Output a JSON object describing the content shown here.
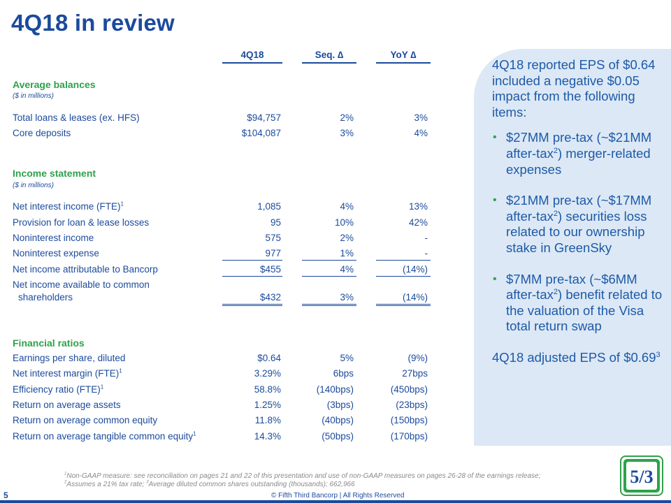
{
  "title": "4Q18 in review",
  "columns": [
    "4Q18",
    "Seq. ∆",
    "YoY ∆"
  ],
  "sections": {
    "avg_balances": {
      "heading": "Average balances",
      "unit": "($ in millions)"
    },
    "income": {
      "heading": "Income statement",
      "unit": "($ in millions)"
    },
    "ratios": {
      "heading": "Financial ratios"
    }
  },
  "rows": {
    "loans": {
      "label": "Total loans & leases (ex. HFS)",
      "v1": "$94,757",
      "v2": "2%",
      "v3": "3%"
    },
    "deposits": {
      "label": "Core deposits",
      "v1": "$104,087",
      "v2": "3%",
      "v3": "4%"
    },
    "nii": {
      "label": "Net interest income (FTE)",
      "sup": "1",
      "v1": "1,085",
      "v2": "4%",
      "v3": "13%"
    },
    "provision": {
      "label": "Provision for loan & lease losses",
      "v1": "95",
      "v2": "10%",
      "v3": "42%"
    },
    "nonint_income": {
      "label": "Noninterest income",
      "v1": "575",
      "v2": "2%",
      "v3": "-"
    },
    "nonint_expense": {
      "label": "Noninterest expense",
      "v1": "977",
      "v2": "1%",
      "v3": "-"
    },
    "net_income": {
      "label": "Net income attributable to Bancorp",
      "v1": "$455",
      "v2": "4%",
      "v3": "(14%)"
    },
    "net_common": {
      "label_l1": "Net income available to common",
      "label_l2": "shareholders",
      "v1": "$432",
      "v2": "3%",
      "v3": "(14%)"
    },
    "eps": {
      "label": "Earnings per share, diluted",
      "v1": "$0.64",
      "v2": "5%",
      "v3": "(9%)"
    },
    "nim": {
      "label": "Net interest margin (FTE)",
      "sup": "1",
      "v1": "3.29%",
      "v2": "6bps",
      "v3": "27bps"
    },
    "efficiency": {
      "label": "Efficiency ratio (FTE)",
      "sup": "1",
      "v1": "58.8%",
      "v2": "(140bps)",
      "v3": "(450bps)"
    },
    "roa": {
      "label": "Return on average assets",
      "v1": "1.25%",
      "v2": "(3bps)",
      "v3": "(23bps)"
    },
    "roe": {
      "label": "Return on average common equity",
      "v1": "11.8%",
      "v2": "(40bps)",
      "v3": "(150bps)"
    },
    "rotce": {
      "label": "Return on average tangible common equity",
      "sup": "1",
      "v1": "14.3%",
      "v2": "(50bps)",
      "v3": "(170bps)"
    }
  },
  "panel": {
    "intro": "4Q18 reported EPS of $0.64 included a negative $0.05 impact from the following items:",
    "b1_pre": "$27MM pre-tax (~$21MM after-tax",
    "b1_post": ") merger-related expenses",
    "b2_pre": "$21MM pre-tax (~$17MM after-tax",
    "b2_post": ") securities loss related to our ownership stake in GreenSky",
    "b3_pre": "$7MM pre-tax (~$6MM after-tax",
    "b3_post": ") benefit related to the valuation of the Visa total return swap",
    "sup2": "2",
    "adjusted": "4Q18 adjusted EPS of $0.69",
    "sup3": "3"
  },
  "footnote": {
    "line1_sup": "1",
    "line1": "Non-GAAP measure: see reconciliation on pages 21 and 22 of this presentation and use of non-GAAP measures on pages 26-28 of the earnings release;",
    "line2_sup2": "2",
    "line2_a": "Assumes a 21% tax rate; ",
    "line2_sup3": "3",
    "line2_b": "Average diluted common shares outstanding (thousands); 662,966"
  },
  "page_number": "5",
  "copyright": "© Fifth Third Bancorp | All Rights Reserved",
  "logo_text": "5/3",
  "colors": {
    "brand_blue": "#1b4a9c",
    "brand_green": "#2ea24a",
    "panel_bg": "#dce8f5"
  }
}
